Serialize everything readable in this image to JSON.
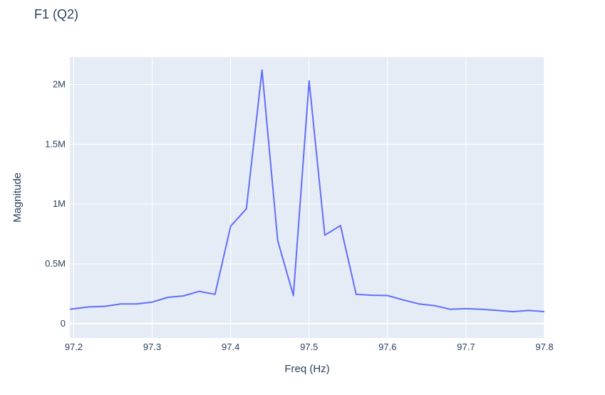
{
  "chart_data": {
    "type": "line",
    "title": "F1 (Q2)",
    "xlabel": "Freq (Hz)",
    "ylabel": "Magnitude",
    "xlim": [
      97.195,
      97.8
    ],
    "ylim": [
      -120000,
      2230000
    ],
    "x_ticks": [
      {
        "value": 97.2,
        "label": "97.2"
      },
      {
        "value": 97.3,
        "label": "97.3"
      },
      {
        "value": 97.4,
        "label": "97.4"
      },
      {
        "value": 97.5,
        "label": "97.5"
      },
      {
        "value": 97.6,
        "label": "97.6"
      },
      {
        "value": 97.7,
        "label": "97.7"
      },
      {
        "value": 97.8,
        "label": "97.8"
      }
    ],
    "y_ticks": [
      {
        "value": 0,
        "label": "0"
      },
      {
        "value": 500000,
        "label": "0.5M"
      },
      {
        "value": 1000000,
        "label": "1M"
      },
      {
        "value": 1500000,
        "label": "1.5M"
      },
      {
        "value": 2000000,
        "label": "2M"
      }
    ],
    "grid": true,
    "colors": {
      "line": "#636efa",
      "plot_bg": "#e5ecf6",
      "grid": "#ffffff",
      "text": "#2a3f5f"
    },
    "series": [
      {
        "x": [
          97.195,
          97.22,
          97.24,
          97.26,
          97.28,
          97.3,
          97.32,
          97.34,
          97.36,
          97.38,
          97.4,
          97.42,
          97.44,
          97.46,
          97.48,
          97.5,
          97.52,
          97.54,
          97.56,
          97.58,
          97.6,
          97.62,
          97.64,
          97.66,
          97.68,
          97.7,
          97.72,
          97.74,
          97.76,
          97.78,
          97.8
        ],
        "y": [
          120000,
          140000,
          145000,
          165000,
          165000,
          180000,
          220000,
          232000,
          270000,
          245000,
          815000,
          960000,
          2120000,
          695000,
          235000,
          2030000,
          740000,
          820000,
          245000,
          237000,
          235000,
          198000,
          165000,
          150000,
          120000,
          125000,
          120000,
          110000,
          100000,
          110000,
          100000
        ]
      }
    ]
  }
}
